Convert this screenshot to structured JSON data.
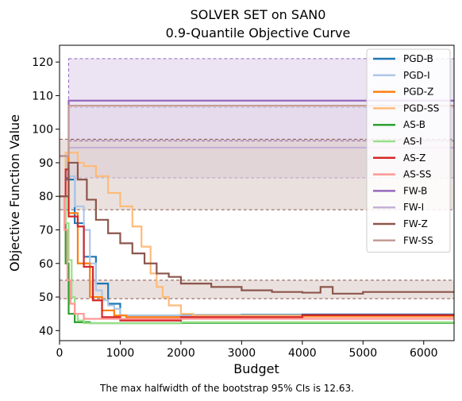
{
  "chart_data": {
    "type": "line",
    "title": "SOLVER SET on SAN0",
    "subtitle": "0.9-Quantile Objective Curve",
    "xlabel": "Budget",
    "ylabel": "Objective Function Value",
    "xlim": [
      0,
      6500
    ],
    "ylim": [
      37,
      125
    ],
    "xticks": [
      0,
      1000,
      2000,
      3000,
      4000,
      5000,
      6000
    ],
    "yticks": [
      40,
      50,
      60,
      70,
      80,
      90,
      100,
      110,
      120
    ],
    "legend_position": "top-right",
    "grid": false,
    "footnote": "The max halfwidth of the bootstrap 95% CIs is 12.63.",
    "series": [
      {
        "name": "PGD-B",
        "color": "#1f77b4",
        "x": [
          0,
          120,
          250,
          400,
          600,
          800,
          1000,
          1500,
          2000,
          3000,
          4000,
          5000,
          6500
        ],
        "y": [
          92,
          85,
          72,
          62,
          54,
          48,
          44.5,
          44.5,
          44.6,
          44.7,
          44.8,
          44.8,
          44.8
        ]
      },
      {
        "name": "PGD-I",
        "color": "#aec7e8",
        "x": [
          0,
          120,
          250,
          400,
          500,
          600,
          700,
          800,
          900,
          1000,
          2000,
          6500
        ],
        "y": [
          92,
          86,
          77,
          70,
          60,
          52,
          49,
          47.5,
          46.5,
          44.5,
          44.4,
          44.3
        ]
      },
      {
        "name": "PGD-Z",
        "color": "#ff7f0e",
        "x": [
          0,
          150,
          300,
          500,
          700,
          900,
          1100,
          2000,
          4000,
          6500
        ],
        "y": [
          92,
          75,
          60,
          50,
          46,
          44.5,
          44,
          44,
          44.2,
          44.2
        ]
      },
      {
        "name": "PGD-SS",
        "color": "#ffbb78",
        "x": [
          0,
          100,
          300,
          400,
          600,
          800,
          1000,
          1200,
          1350,
          1500,
          1600,
          1700,
          1800,
          2000,
          2200,
          6500
        ],
        "y": [
          80,
          93,
          90,
          89,
          86,
          81,
          77,
          71,
          65,
          57,
          53,
          50,
          47.5,
          45,
          44.5,
          44.5
        ]
      },
      {
        "name": "AS-B",
        "color": "#2ca02c",
        "x": [
          0,
          100,
          150,
          250,
          500,
          1000,
          2000,
          3000,
          6500
        ],
        "y": [
          80,
          60,
          45,
          42.5,
          42.2,
          42.2,
          42.3,
          42.3,
          42.3
        ]
      },
      {
        "name": "AS-I",
        "color": "#98df8a",
        "x": [
          0,
          100,
          150,
          200,
          250,
          300,
          400,
          1000,
          2000,
          6500
        ],
        "y": [
          80,
          72,
          61,
          50,
          45,
          43,
          42.2,
          42.2,
          42.5,
          42.5
        ]
      },
      {
        "name": "AS-Z",
        "color": "#d62728",
        "x": [
          0,
          100,
          150,
          300,
          400,
          550,
          700,
          1000,
          1500,
          2000,
          4000,
          6500
        ],
        "y": [
          80,
          88,
          74,
          71,
          59,
          49,
          44,
          43,
          43,
          44,
          44.6,
          44.6
        ]
      },
      {
        "name": "AS-SS",
        "color": "#ff9896",
        "x": [
          0,
          80,
          130,
          180,
          250,
          400,
          1000,
          2000,
          6500
        ],
        "y": [
          80,
          70,
          55,
          48,
          45,
          43.5,
          43.5,
          43.5,
          43.5
        ]
      },
      {
        "name": "FW-B",
        "color": "#9467bd",
        "x": [
          0,
          120,
          150,
          6500
        ],
        "y": [
          92,
          92,
          108.5,
          108.5
        ]
      },
      {
        "name": "FW-I",
        "color": "#c5b0d5",
        "x": [
          0,
          120,
          150,
          6500
        ],
        "y": [
          92,
          92,
          94.5,
          94.5
        ]
      },
      {
        "name": "FW-Z",
        "color": "#8c564b",
        "x": [
          0,
          150,
          300,
          450,
          600,
          800,
          1000,
          1200,
          1400,
          1600,
          1800,
          2000,
          2500,
          3000,
          3500,
          4000,
          4300,
          4500,
          5000,
          6500
        ],
        "y": [
          80,
          90,
          85,
          79,
          73,
          69,
          66,
          63,
          60,
          57,
          56,
          54,
          53,
          52,
          51.5,
          51.3,
          53,
          51,
          51.5,
          51.5
        ]
      },
      {
        "name": "FW-SS",
        "color": "#c49c94",
        "x": [
          0,
          120,
          150,
          6500
        ],
        "y": [
          92,
          92,
          107,
          107
        ]
      }
    ],
    "bands": [
      {
        "series": "FW-B",
        "color": "#9467bd",
        "x_start": 150,
        "x_end": 6500,
        "low": 96.5,
        "high": 121
      },
      {
        "series": "FW-I",
        "color": "#c5b0d5",
        "x_start": 150,
        "x_end": 6500,
        "low": 85.5,
        "high": 106.5
      },
      {
        "series": "FW-Z",
        "color": "#8c564b",
        "x_start": 0,
        "x_end": 6500,
        "low": 49.5,
        "high": 55
      },
      {
        "series": "FW-Z",
        "color": "#8c564b",
        "x_start": 0,
        "x_end": 6500,
        "low": 76,
        "high": 97
      }
    ]
  }
}
